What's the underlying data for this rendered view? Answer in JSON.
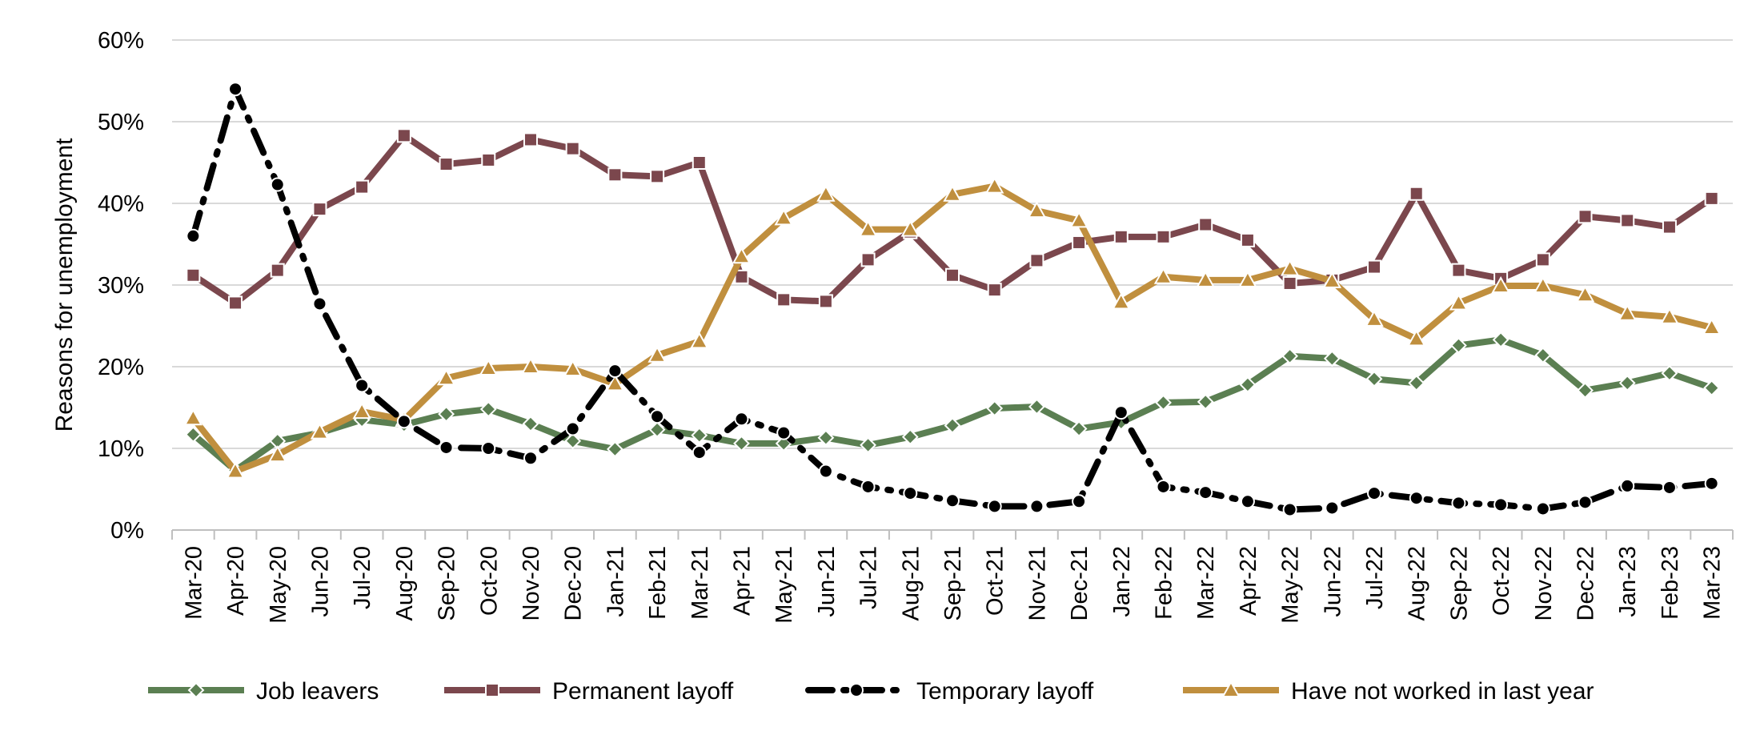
{
  "chart_data": {
    "type": "line",
    "ylabel": "Reasons for unemployment",
    "xlabel": "",
    "title": "",
    "ylim": [
      0,
      60
    ],
    "yticks": [
      "0%",
      "10%",
      "20%",
      "30%",
      "40%",
      "50%",
      "60%"
    ],
    "grid": "horizontal",
    "legend_position": "bottom",
    "categories": [
      "Mar-20",
      "Apr-20",
      "May-20",
      "Jun-20",
      "Jul-20",
      "Aug-20",
      "Sep-20",
      "Oct-20",
      "Nov-20",
      "Dec-20",
      "Jan-21",
      "Feb-21",
      "Mar-21",
      "Apr-21",
      "May-21",
      "Jun-21",
      "Jul-21",
      "Aug-21",
      "Sep-21",
      "Oct-21",
      "Nov-21",
      "Dec-21",
      "Jan-22",
      "Feb-22",
      "Mar-22",
      "Apr-22",
      "May-22",
      "Jun-22",
      "Jul-22",
      "Aug-22",
      "Sep-22",
      "Oct-22",
      "Nov-22",
      "Dec-22",
      "Jan-23",
      "Feb-23",
      "Mar-23"
    ],
    "series": [
      {
        "name": "Job leavers",
        "color": "#5b7f52",
        "marker": "diamond",
        "dash": "solid",
        "values": [
          11.7,
          7.3,
          10.9,
          11.9,
          13.5,
          12.9,
          14.2,
          14.8,
          13.0,
          10.9,
          9.9,
          12.3,
          11.6,
          10.6,
          10.6,
          11.3,
          10.4,
          11.4,
          12.8,
          14.9,
          15.1,
          12.4,
          13.2,
          15.6,
          15.7,
          17.8,
          21.3,
          21.0,
          18.5,
          18.0,
          22.6,
          23.3,
          21.4,
          17.1,
          18.0,
          19.2,
          17.4
        ]
      },
      {
        "name": "Permanent layoff",
        "color": "#7b474d",
        "marker": "square",
        "dash": "solid",
        "values": [
          31.2,
          27.8,
          31.8,
          39.3,
          42.0,
          48.3,
          44.8,
          45.3,
          47.8,
          46.7,
          43.5,
          43.3,
          45.0,
          31.0,
          28.2,
          28.0,
          33.1,
          36.5,
          31.2,
          29.4,
          33.0,
          35.2,
          35.9,
          35.9,
          37.4,
          35.5,
          30.2,
          30.6,
          32.2,
          41.2,
          31.8,
          30.8,
          33.1,
          38.4,
          37.9,
          37.1,
          40.6
        ]
      },
      {
        "name": "Temporary layoff",
        "color": "#000000",
        "marker": "circle",
        "dash": "dashdot",
        "values": [
          36.0,
          54.0,
          42.3,
          27.7,
          17.7,
          13.3,
          10.1,
          10.0,
          8.8,
          12.4,
          19.5,
          13.9,
          9.5,
          13.6,
          11.9,
          7.2,
          5.3,
          4.5,
          3.6,
          2.9,
          2.9,
          3.5,
          14.4,
          5.3,
          4.6,
          3.5,
          2.5,
          2.7,
          4.5,
          3.9,
          3.3,
          3.1,
          2.6,
          3.4,
          5.4,
          5.2,
          5.7
        ]
      },
      {
        "name": "Have not worked in last year",
        "color": "#c08f3e",
        "marker": "triangle",
        "dash": "solid",
        "values": [
          13.7,
          7.2,
          9.2,
          12.0,
          14.5,
          13.5,
          18.6,
          19.8,
          20.0,
          19.7,
          17.9,
          21.4,
          23.1,
          33.5,
          38.2,
          41.1,
          36.8,
          36.8,
          41.1,
          42.1,
          39.1,
          37.9,
          27.9,
          31.0,
          30.6,
          30.6,
          32.0,
          30.5,
          25.8,
          23.4,
          27.8,
          29.9,
          29.9,
          28.8,
          26.5,
          26.1,
          24.8
        ]
      }
    ]
  }
}
